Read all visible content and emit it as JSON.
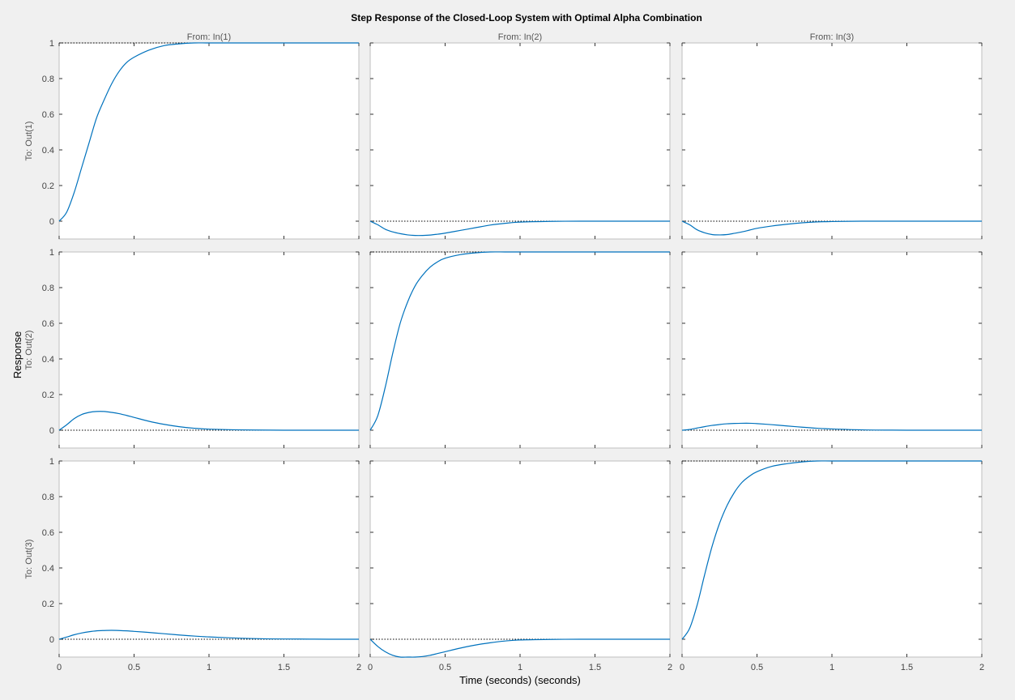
{
  "figure": {
    "title": "Step Response of the Closed-Loop System with Optimal Alpha Combination",
    "ylabel": "Response",
    "xlabel": "Time (seconds) (seconds)",
    "background": "#f0f0f0",
    "axes_background": "#ffffff",
    "line_color": "#0072bd",
    "reference_line_color": "#000000"
  },
  "chart_data": {
    "type": "line",
    "title": "Step Response of the Closed-Loop System with Optimal Alpha Combination",
    "xlabel": "Time (seconds) (seconds)",
    "ylabel": "Response",
    "grid": false,
    "legend": "none",
    "xlim": [
      0,
      2
    ],
    "ylim": [
      -0.1,
      1
    ],
    "x_ticks": [
      0,
      0.5,
      1,
      1.5,
      2
    ],
    "x_tick_labels": [
      "0",
      "0.5",
      "1",
      "1.5",
      "2"
    ],
    "y_ticks": [
      0,
      0.2,
      0.4,
      0.6,
      0.8,
      1
    ],
    "y_tick_labels": [
      "0",
      "0.2",
      "0.4",
      "0.6",
      "0.8",
      "1"
    ],
    "column_labels": [
      "From: In(1)",
      "From: In(2)",
      "From: In(3)"
    ],
    "row_labels": [
      "To: Out(1)",
      "To: Out(2)",
      "To: Out(3)"
    ],
    "time": [
      0,
      0.05,
      0.1,
      0.15,
      0.2,
      0.25,
      0.3,
      0.35,
      0.4,
      0.45,
      0.5,
      0.6,
      0.7,
      0.8,
      0.9,
      1.0,
      1.2,
      1.4,
      1.6,
      1.8,
      2.0
    ],
    "panels": [
      {
        "row": 0,
        "col": 0,
        "steady_state": 1,
        "y": [
          0,
          0.05,
          0.16,
          0.3,
          0.44,
          0.58,
          0.68,
          0.77,
          0.84,
          0.89,
          0.92,
          0.96,
          0.985,
          0.995,
          1.0,
          1.0,
          1.0,
          1.0,
          1.0,
          1.0,
          1.0
        ]
      },
      {
        "row": 0,
        "col": 1,
        "steady_state": 0,
        "y": [
          0,
          -0.02,
          -0.045,
          -0.06,
          -0.07,
          -0.077,
          -0.08,
          -0.08,
          -0.078,
          -0.073,
          -0.067,
          -0.052,
          -0.037,
          -0.022,
          -0.012,
          -0.005,
          -0.001,
          0,
          0,
          0,
          0
        ]
      },
      {
        "row": 0,
        "col": 2,
        "steady_state": 0,
        "y": [
          0,
          -0.02,
          -0.048,
          -0.065,
          -0.075,
          -0.077,
          -0.075,
          -0.068,
          -0.06,
          -0.05,
          -0.04,
          -0.027,
          -0.017,
          -0.009,
          -0.004,
          -0.002,
          0,
          0,
          0,
          0,
          0
        ]
      },
      {
        "row": 1,
        "col": 0,
        "steady_state": 0,
        "y": [
          0,
          0.03,
          0.065,
          0.088,
          0.1,
          0.105,
          0.105,
          0.1,
          0.093,
          0.083,
          0.072,
          0.05,
          0.033,
          0.02,
          0.011,
          0.006,
          0.002,
          0.0005,
          0,
          0,
          0
        ]
      },
      {
        "row": 1,
        "col": 1,
        "steady_state": 1,
        "y": [
          0,
          0.08,
          0.24,
          0.43,
          0.6,
          0.72,
          0.81,
          0.87,
          0.915,
          0.945,
          0.965,
          0.985,
          0.995,
          1.0,
          1.0,
          1.0,
          1.0,
          1.0,
          1.0,
          1.0,
          1.0
        ]
      },
      {
        "row": 1,
        "col": 2,
        "steady_state": 0,
        "y": [
          0,
          0.004,
          0.012,
          0.02,
          0.027,
          0.032,
          0.036,
          0.038,
          0.039,
          0.039,
          0.037,
          0.031,
          0.024,
          0.017,
          0.011,
          0.007,
          0.002,
          0.0005,
          0,
          0,
          0
        ]
      },
      {
        "row": 2,
        "col": 0,
        "steady_state": 0,
        "y": [
          0,
          0.012,
          0.025,
          0.035,
          0.042,
          0.047,
          0.049,
          0.05,
          0.049,
          0.047,
          0.044,
          0.038,
          0.031,
          0.024,
          0.018,
          0.013,
          0.006,
          0.002,
          0.001,
          0,
          0
        ]
      },
      {
        "row": 2,
        "col": 1,
        "steady_state": 0,
        "y": [
          0,
          -0.04,
          -0.07,
          -0.09,
          -0.1,
          -0.1,
          -0.1,
          -0.097,
          -0.09,
          -0.08,
          -0.07,
          -0.05,
          -0.033,
          -0.02,
          -0.01,
          -0.004,
          -0.001,
          0,
          0,
          0,
          0
        ]
      },
      {
        "row": 2,
        "col": 2,
        "steady_state": 1,
        "y": [
          0,
          0.06,
          0.19,
          0.36,
          0.52,
          0.65,
          0.75,
          0.825,
          0.88,
          0.915,
          0.94,
          0.97,
          0.985,
          0.995,
          1.0,
          1.0,
          1.0,
          1.0,
          1.0,
          1.0,
          1.0
        ]
      }
    ]
  }
}
